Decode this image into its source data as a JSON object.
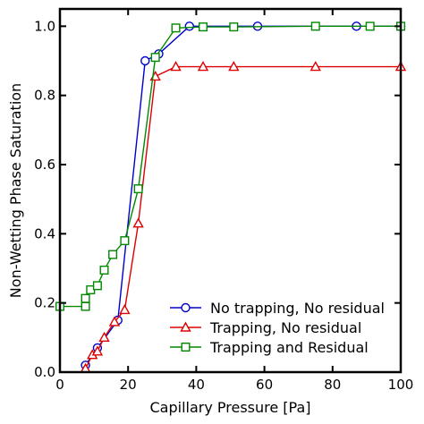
{
  "chart_data": {
    "type": "line",
    "title": "",
    "xlabel": "Capillary Pressure [Pa]",
    "ylabel": "Non-Wetting Phase Saturation",
    "xlim": [
      0,
      100
    ],
    "ylim": [
      0,
      1.05
    ],
    "x_ticks": [
      "0",
      "20",
      "40",
      "60",
      "80",
      "100"
    ],
    "y_ticks": [
      "0.0",
      "0.2",
      "0.4",
      "0.6",
      "0.8",
      "1.0"
    ],
    "grid": false,
    "legend_position": "lower-right",
    "series": [
      {
        "name": "No trapping, No residual",
        "color": "#0000cc",
        "marker": "circle",
        "x": [
          7.5,
          11,
          17,
          25,
          29,
          38,
          58,
          87,
          100
        ],
        "y": [
          0.02,
          0.07,
          0.15,
          0.9,
          0.92,
          1.0,
          1.0,
          1.0,
          1.0
        ]
      },
      {
        "name": "Trapping, No residual",
        "color": "#dd0000",
        "marker": "triangle",
        "x": [
          7.5,
          9.5,
          11,
          13,
          16,
          19,
          23,
          28,
          34,
          42,
          51,
          75,
          100
        ],
        "y": [
          0.01,
          0.05,
          0.06,
          0.1,
          0.145,
          0.18,
          0.43,
          0.855,
          0.883,
          0.883,
          0.883,
          0.883,
          0.883
        ]
      },
      {
        "name": "Trapping and Residual",
        "color": "#008800",
        "marker": "square",
        "x": [
          0,
          7.5,
          7.5,
          9,
          11,
          13,
          15.5,
          19,
          23,
          28,
          34,
          42,
          51,
          75,
          91,
          100
        ],
        "y": [
          0.19,
          0.19,
          0.213,
          0.238,
          0.25,
          0.295,
          0.34,
          0.38,
          0.53,
          0.91,
          0.995,
          0.998,
          0.998,
          1.0,
          1.0,
          1.0
        ]
      }
    ]
  }
}
